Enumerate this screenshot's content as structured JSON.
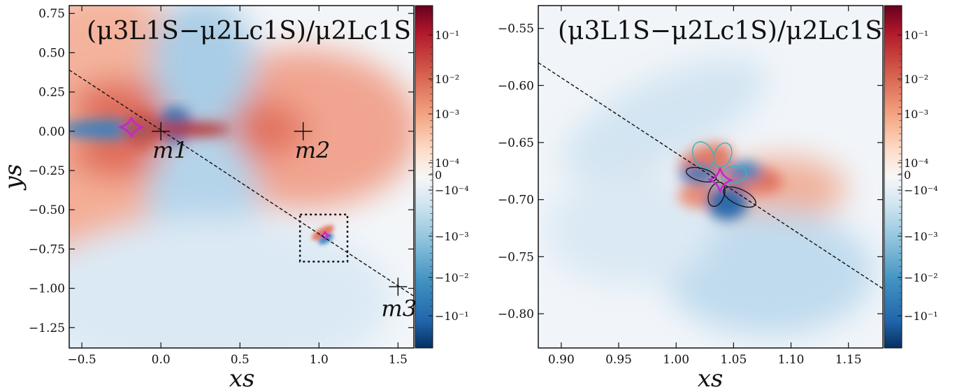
{
  "chart_data": [
    {
      "type": "heatmap",
      "title": "(μ3L1S−μ2Lc1S)/μ2Lc1S",
      "xlabel": "xs",
      "ylabel": "ys",
      "xlim": [
        -0.58,
        1.6
      ],
      "ylim": [
        -1.38,
        0.8
      ],
      "xticks": [
        "−0.5",
        "0.0",
        "0.5",
        "1.0",
        "1.5"
      ],
      "xtick_values": [
        -0.5,
        0.0,
        0.5,
        1.0,
        1.5
      ],
      "yticks": [
        "0.75",
        "0.50",
        "0.25",
        "0.00",
        "−0.25",
        "−0.50",
        "−0.75",
        "−1.00",
        "−1.25"
      ],
      "ytick_values": [
        0.75,
        0.5,
        0.25,
        0.0,
        -0.25,
        -0.5,
        -0.75,
        -1.0,
        -1.25
      ],
      "masses": [
        {
          "label": "m1",
          "x": 0.0,
          "y": 0.0
        },
        {
          "label": "m2",
          "x": 0.9,
          "y": 0.0
        },
        {
          "label": "m3",
          "x": 1.5,
          "y": -0.99
        }
      ],
      "source_trajectory": {
        "x": [
          -0.58,
          1.6
        ],
        "y": [
          0.39,
          -1.05
        ]
      },
      "zoom_box": {
        "x": [
          0.88,
          1.18
        ],
        "y": [
          -0.83,
          -0.53
        ]
      },
      "colorbar": {
        "scale": "symlog",
        "labels": [
          "10⁻¹",
          "10⁻²",
          "10⁻³",
          "10⁻⁴",
          "0",
          "−10⁻⁴",
          "−10⁻³",
          "−10⁻²",
          "−10⁻¹"
        ],
        "colormap": "RdBu_r"
      }
    },
    {
      "type": "heatmap",
      "title": "(μ3L1S−μ2Lc1S)/μ2Lc1S",
      "xlabel": "xs",
      "ylabel": "",
      "xlim": [
        0.88,
        1.18
      ],
      "ylim": [
        -0.83,
        -0.53
      ],
      "xticks": [
        "0.90",
        "0.95",
        "1.00",
        "1.05",
        "1.10",
        "1.15"
      ],
      "xtick_values": [
        0.9,
        0.95,
        1.0,
        1.05,
        1.1,
        1.15
      ],
      "yticks": [
        "−0.55",
        "−0.60",
        "−0.65",
        "−0.70",
        "−0.75",
        "−0.80"
      ],
      "ytick_values": [
        -0.55,
        -0.6,
        -0.65,
        -0.7,
        -0.75,
        -0.8
      ],
      "source_trajectory": {
        "x": [
          0.88,
          1.18
        ],
        "y": [
          -0.58,
          -0.778
        ]
      },
      "caustic_center": {
        "x": 1.04,
        "y": -0.685
      },
      "colorbar": {
        "scale": "symlog",
        "labels": [
          "10⁻¹",
          "10⁻²",
          "10⁻³",
          "10⁻⁴",
          "0",
          "−10⁻⁴",
          "−10⁻³",
          "−10⁻²",
          "−10⁻¹"
        ],
        "colormap": "RdBu_r"
      }
    }
  ],
  "colors": {
    "red_strong": "#b2182b",
    "red_mid": "#e0705a",
    "red_light": "#f6c9b4",
    "neutral": "#f7f7f7",
    "blue_light": "#c6dff0",
    "blue_mid": "#5aa0cf",
    "blue_strong": "#1f5fa0",
    "caustic": "#cc22cc",
    "curve_cyan": "#33b8b8"
  }
}
